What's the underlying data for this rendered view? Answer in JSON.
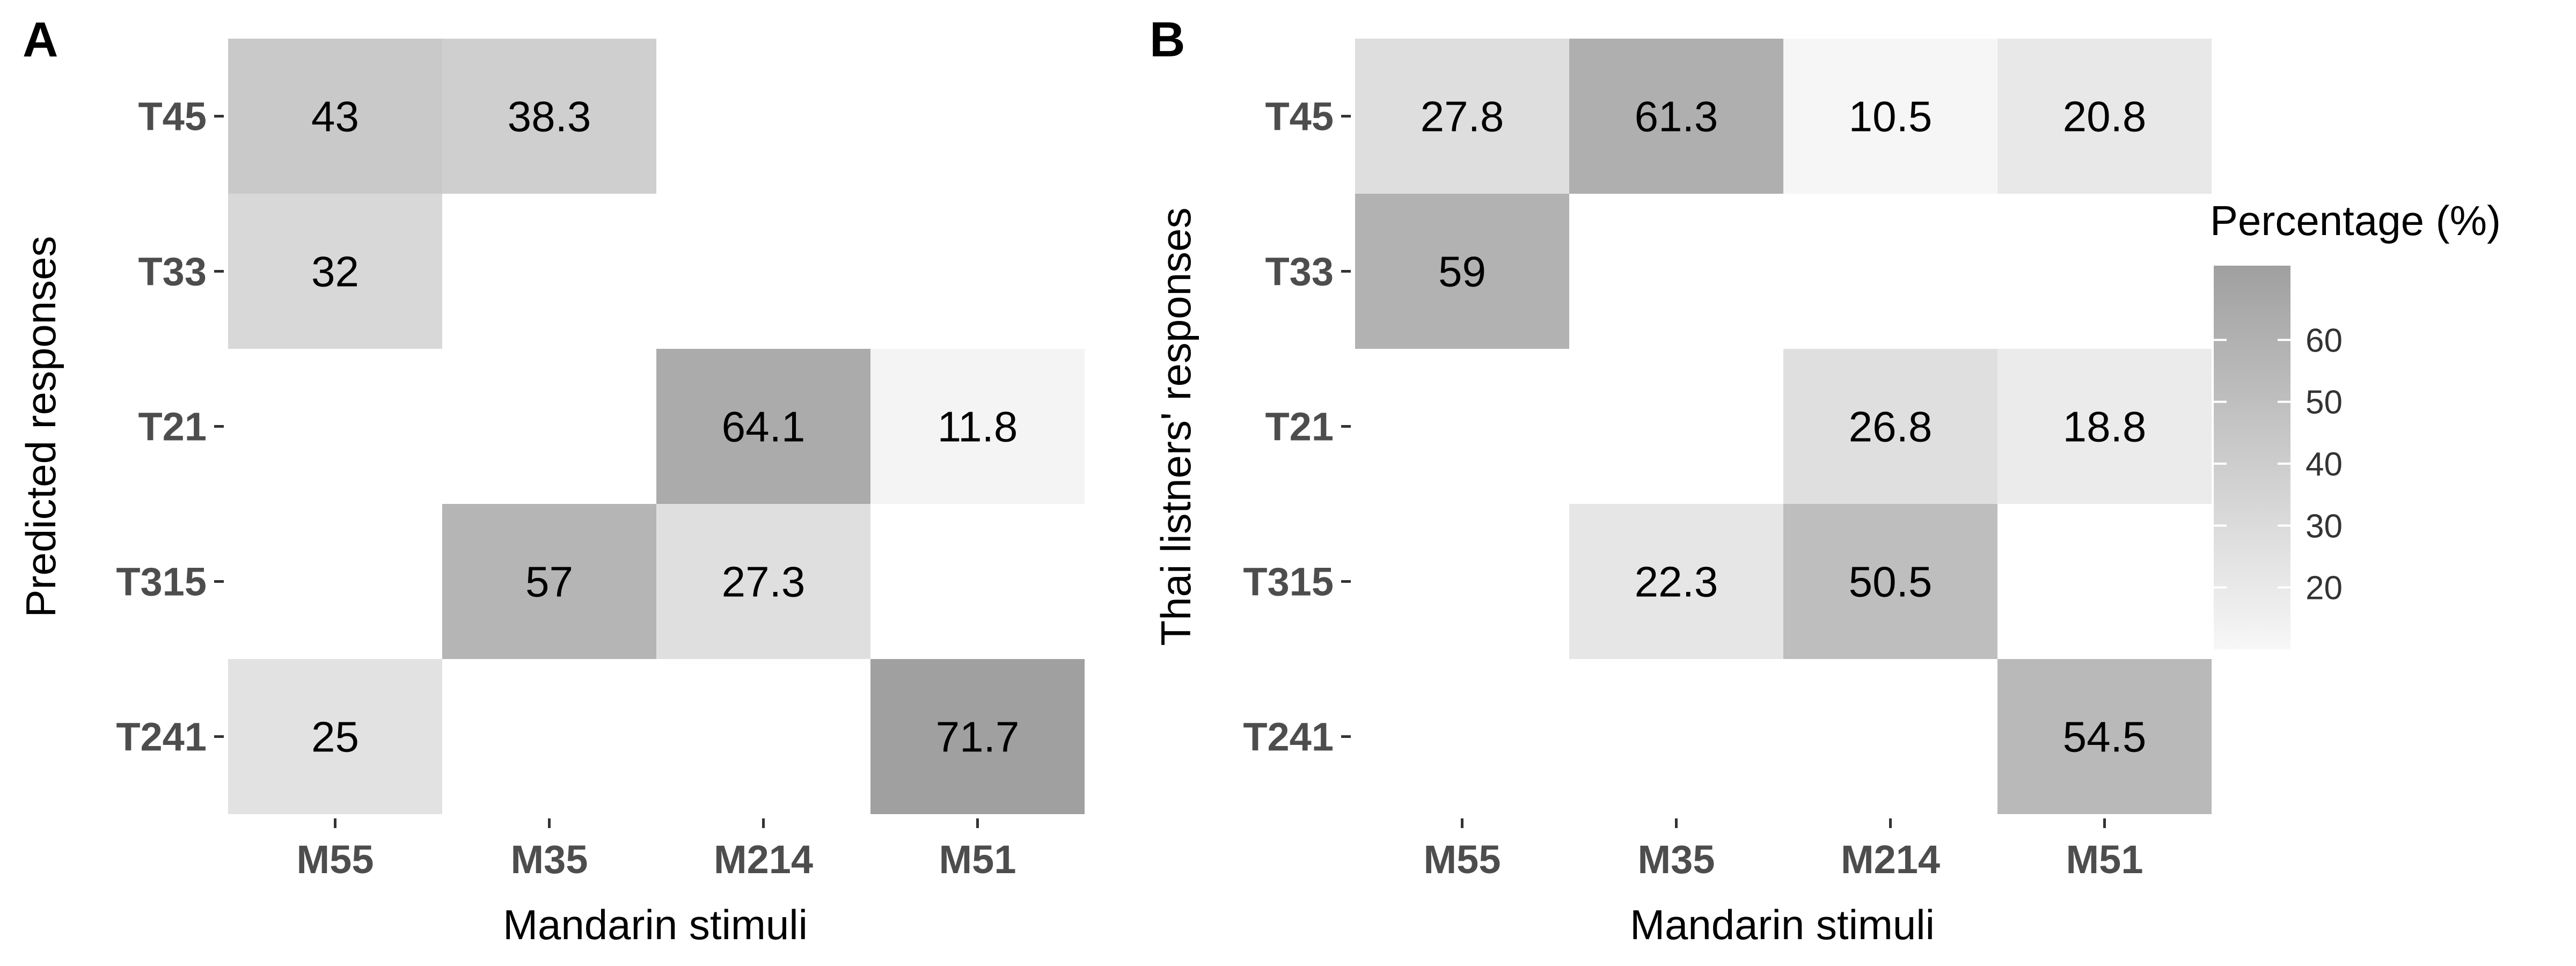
{
  "legend": {
    "title": "Percentage (%)",
    "ticks": [
      20,
      30,
      40,
      50,
      60
    ],
    "range": [
      10,
      72
    ]
  },
  "colors": {
    "low": "#f7f7f7",
    "high": "#a0a0a0",
    "text": "#000000",
    "tick_text": "#4d4d4d"
  },
  "chart_data": [
    {
      "type": "heatmap",
      "panel_label": "A",
      "xlabel": "Mandarin stimuli",
      "ylabel": "Predicted responses",
      "x_categories": [
        "M55",
        "M35",
        "M214",
        "M51"
      ],
      "y_categories": [
        "T45",
        "T33",
        "T21",
        "T315",
        "T241"
      ],
      "cells": [
        {
          "x": "M55",
          "y": "T45",
          "value": 43
        },
        {
          "x": "M35",
          "y": "T45",
          "value": 38.3
        },
        {
          "x": "M55",
          "y": "T33",
          "value": 32
        },
        {
          "x": "M214",
          "y": "T21",
          "value": 64.1
        },
        {
          "x": "M51",
          "y": "T21",
          "value": 11.8
        },
        {
          "x": "M35",
          "y": "T315",
          "value": 57
        },
        {
          "x": "M214",
          "y": "T315",
          "value": 27.3
        },
        {
          "x": "M55",
          "y": "T241",
          "value": 25
        },
        {
          "x": "M51",
          "y": "T241",
          "value": 71.7
        }
      ]
    },
    {
      "type": "heatmap",
      "panel_label": "B",
      "xlabel": "Mandarin stimuli",
      "ylabel": "Thai listners' responses",
      "x_categories": [
        "M55",
        "M35",
        "M214",
        "M51"
      ],
      "y_categories": [
        "T45",
        "T33",
        "T21",
        "T315",
        "T241"
      ],
      "cells": [
        {
          "x": "M55",
          "y": "T45",
          "value": 27.8
        },
        {
          "x": "M35",
          "y": "T45",
          "value": 61.3
        },
        {
          "x": "M214",
          "y": "T45",
          "value": 10.5
        },
        {
          "x": "M51",
          "y": "T45",
          "value": 20.8
        },
        {
          "x": "M55",
          "y": "T33",
          "value": 59
        },
        {
          "x": "M214",
          "y": "T21",
          "value": 26.8
        },
        {
          "x": "M51",
          "y": "T21",
          "value": 18.8
        },
        {
          "x": "M35",
          "y": "T315",
          "value": 22.3
        },
        {
          "x": "M214",
          "y": "T315",
          "value": 50.5
        },
        {
          "x": "M51",
          "y": "T241",
          "value": 54.5
        }
      ]
    }
  ]
}
